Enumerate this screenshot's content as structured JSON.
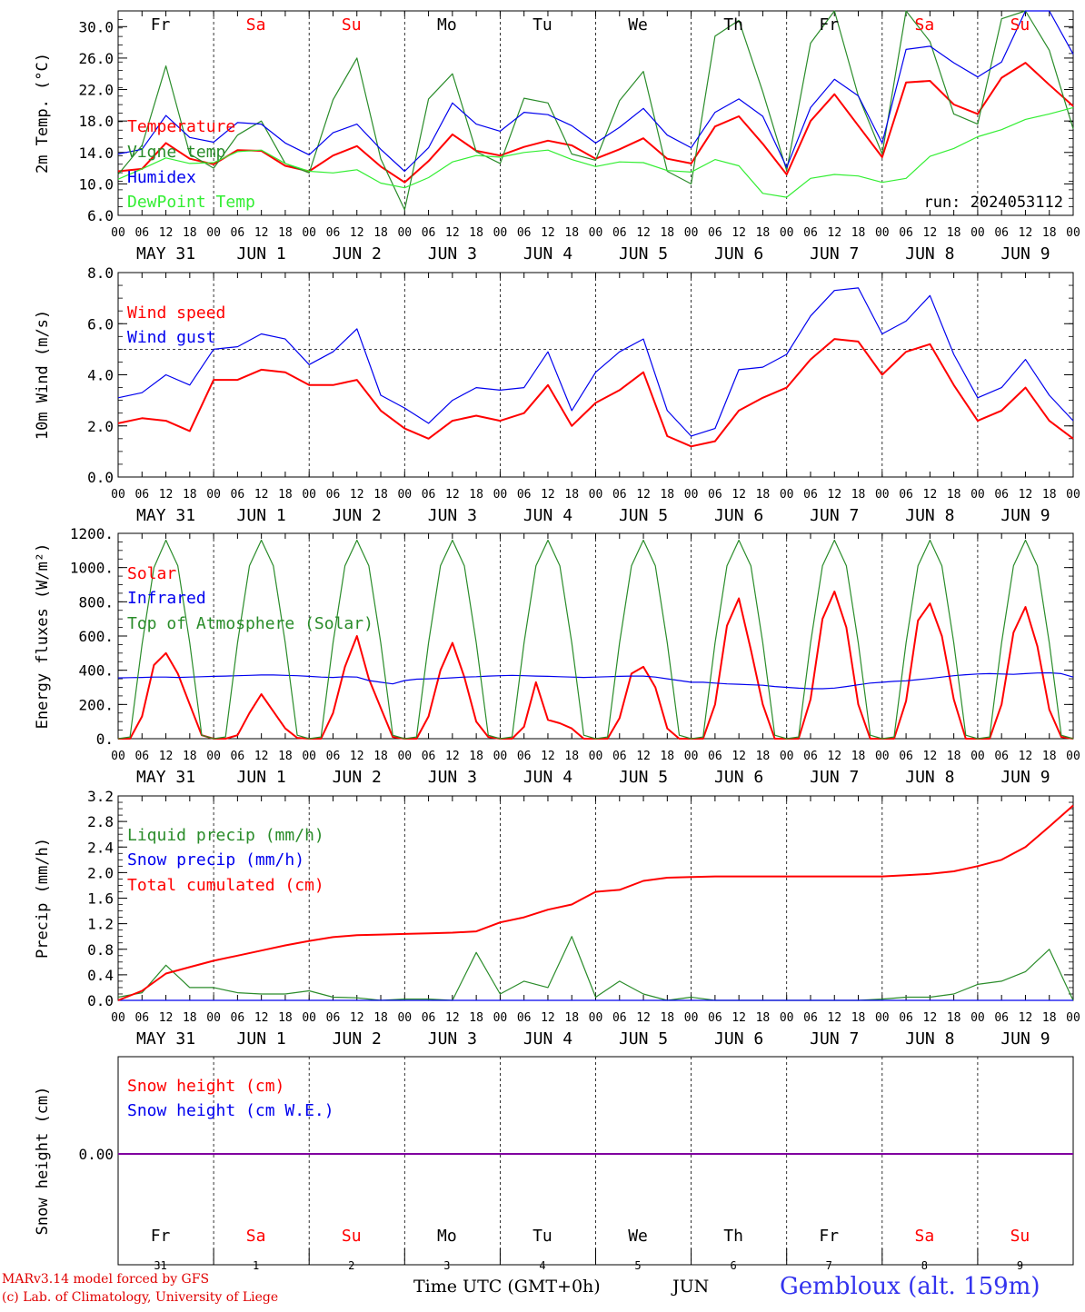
{
  "footer": {
    "credit_line1": "MARv3.14 model forced by GFS",
    "credit_line2": "(c) Lab. of Climatology, University of Liege",
    "time_label": "Time UTC (GMT+0h)",
    "month_label": "JUN",
    "station": "Gembloux (alt. 159m)"
  },
  "colors": {
    "red": "#ff0000",
    "green": "#2a8c2a",
    "blue": "#0000ee",
    "lightgreen": "#33ee33",
    "purple": "#8000a0",
    "weekend": "#ff0000",
    "weekday": "#000000"
  },
  "day_names": [
    "Fr",
    "Sa",
    "Su",
    "Mo",
    "Tu",
    "We",
    "Th",
    "Fr",
    "Sa",
    "Su"
  ],
  "weekend_flags": [
    false,
    true,
    true,
    false,
    false,
    false,
    false,
    false,
    true,
    true
  ],
  "date_labels": [
    "MAY 31",
    "JUN  1",
    "JUN  2",
    "JUN  3",
    "JUN  4",
    "JUN  5",
    "JUN  6",
    "JUN  7",
    "JUN  8",
    "JUN  9"
  ],
  "hour_labels": [
    "00",
    "06",
    "12",
    "18"
  ],
  "day_numbers": [
    "31",
    "1",
    "2",
    "3",
    "4",
    "5",
    "6",
    "7",
    "8",
    "9"
  ],
  "chart_data": [
    {
      "type": "line",
      "ylabel": "2m Temp. (°C)",
      "ylim": [
        6,
        32
      ],
      "yticks": [
        "6.0",
        "10.0",
        "14.0",
        "18.0",
        "22.0",
        "26.0",
        "30.0"
      ],
      "annotation": "run: 2024053112",
      "legend_placement": "left",
      "x_hours": [
        0,
        6,
        12,
        18,
        24,
        30,
        36,
        42,
        48,
        54,
        60,
        66,
        72,
        78,
        84,
        90,
        96,
        102,
        108,
        114,
        120,
        126,
        132,
        138,
        144,
        150,
        156,
        162,
        168,
        174,
        180,
        186,
        192,
        198,
        204,
        210,
        216,
        222,
        228,
        234,
        240
      ],
      "series": [
        {
          "name": "Temperature",
          "color": "red",
          "values": [
            11.6,
            11.9,
            15.2,
            13.2,
            12.5,
            14.3,
            14.2,
            12.3,
            11.6,
            13.6,
            14.8,
            12.2,
            10.2,
            12.9,
            16.3,
            14.2,
            13.6,
            14.7,
            15.5,
            14.9,
            13.2,
            14.4,
            15.8,
            13.2,
            12.6,
            17.3,
            18.6,
            15.1,
            11.2,
            18.0,
            21.4,
            17.4,
            13.4,
            22.9,
            23.1,
            20.1,
            18.9,
            23.5,
            25.4,
            22.6,
            19.9
          ]
        },
        {
          "name": "Vigne temp",
          "color": "green",
          "values": [
            11.2,
            14.9,
            25.0,
            13.8,
            12.0,
            16.2,
            18.0,
            12.6,
            11.4,
            20.7,
            26.0,
            13.2,
            6.7,
            20.8,
            24.0,
            14.1,
            12.6,
            20.9,
            20.3,
            13.8,
            13.0,
            20.6,
            24.3,
            11.6,
            10.0,
            28.8,
            30.8,
            21.7,
            11.7,
            27.9,
            32.0,
            21.2,
            13.8,
            32.0,
            28.1,
            18.9,
            17.6,
            31.0,
            32.0,
            27.0,
            17.0
          ]
        },
        {
          "name": "Humidex",
          "color": "blue",
          "values": [
            13.8,
            14.4,
            18.7,
            15.9,
            15.3,
            17.8,
            17.6,
            15.2,
            13.7,
            16.5,
            17.6,
            14.4,
            11.6,
            14.6,
            20.3,
            17.6,
            16.7,
            19.1,
            18.8,
            17.4,
            15.2,
            17.2,
            19.6,
            16.2,
            14.6,
            19.1,
            20.8,
            18.6,
            12.1,
            19.7,
            23.3,
            21.2,
            15.2,
            27.1,
            27.5,
            25.4,
            23.6,
            25.5,
            32.0,
            32.0,
            26.5
          ]
        },
        {
          "name": "DewPoint Temp",
          "color": "lightgreen",
          "values": [
            10.6,
            11.9,
            13.3,
            12.6,
            12.7,
            14.1,
            14.3,
            12.6,
            11.6,
            11.4,
            11.8,
            10.1,
            9.5,
            10.8,
            12.8,
            13.6,
            13.4,
            14.0,
            14.3,
            13.1,
            12.2,
            12.8,
            12.7,
            11.7,
            11.5,
            13.1,
            12.3,
            8.8,
            8.3,
            10.7,
            11.2,
            11.0,
            10.2,
            10.7,
            13.5,
            14.5,
            16.0,
            16.9,
            18.2,
            18.9,
            19.7
          ]
        }
      ]
    },
    {
      "type": "line",
      "ylabel": "10m Wind (m/s)",
      "ylim": [
        0,
        8
      ],
      "yticks": [
        "0.0",
        "2.0",
        "4.0",
        "6.0",
        "8.0"
      ],
      "reference_line": 5,
      "legend_placement": "left",
      "x_hours": [
        0,
        6,
        12,
        18,
        24,
        30,
        36,
        42,
        48,
        54,
        60,
        66,
        72,
        78,
        84,
        90,
        96,
        102,
        108,
        114,
        120,
        126,
        132,
        138,
        144,
        150,
        156,
        162,
        168,
        174,
        180,
        186,
        192,
        198,
        204,
        210,
        216,
        222,
        228,
        234,
        240
      ],
      "series": [
        {
          "name": "Wind speed",
          "color": "red",
          "values": [
            2.1,
            2.3,
            2.2,
            1.8,
            3.8,
            3.8,
            4.2,
            4.1,
            3.6,
            3.6,
            3.8,
            2.6,
            1.9,
            1.5,
            2.2,
            2.4,
            2.2,
            2.5,
            3.6,
            2.0,
            2.9,
            3.4,
            4.1,
            1.6,
            1.2,
            1.4,
            2.6,
            3.1,
            3.5,
            4.6,
            5.4,
            5.3,
            4.0,
            4.9,
            5.2,
            3.6,
            2.2,
            2.6,
            3.5,
            2.2,
            1.5
          ]
        },
        {
          "name": "Wind gust",
          "color": "blue",
          "values": [
            3.1,
            3.3,
            4.0,
            3.6,
            5.0,
            5.1,
            5.6,
            5.4,
            4.4,
            4.9,
            5.8,
            3.2,
            2.7,
            2.1,
            3.0,
            3.5,
            3.4,
            3.5,
            4.9,
            2.6,
            4.1,
            4.9,
            5.4,
            2.6,
            1.6,
            1.9,
            4.2,
            4.3,
            4.8,
            6.3,
            7.3,
            7.4,
            5.6,
            6.1,
            7.1,
            4.8,
            3.1,
            3.5,
            4.6,
            3.2,
            2.2
          ]
        }
      ]
    },
    {
      "type": "line",
      "ylabel": "Energy fluxes (W/m²)",
      "ylim": [
        0,
        1200
      ],
      "yticks": [
        "0.",
        "200.",
        "400.",
        "600.",
        "800.",
        "1000.",
        "1200."
      ],
      "legend_placement": "left",
      "x_hours": [
        0,
        3,
        6,
        9,
        12,
        15,
        18,
        21,
        24,
        27,
        30,
        33,
        36,
        39,
        42,
        45,
        48,
        51,
        54,
        57,
        60,
        63,
        66,
        69,
        72,
        75,
        78,
        81,
        84,
        87,
        90,
        93,
        96,
        99,
        102,
        105,
        108,
        111,
        114,
        117,
        120,
        123,
        126,
        129,
        132,
        135,
        138,
        141,
        144,
        147,
        150,
        153,
        156,
        159,
        162,
        165,
        168,
        171,
        174,
        177,
        180,
        183,
        186,
        189,
        192,
        195,
        198,
        201,
        204,
        207,
        210,
        213,
        216,
        219,
        222,
        225,
        228,
        231,
        234,
        237,
        240
      ],
      "series": [
        {
          "name": "Solar",
          "color": "red",
          "values": [
            0,
            0,
            130,
            430,
            500,
            380,
            200,
            20,
            0,
            0,
            20,
            150,
            260,
            160,
            60,
            5,
            0,
            0,
            150,
            420,
            600,
            350,
            180,
            10,
            0,
            0,
            130,
            400,
            560,
            360,
            100,
            10,
            0,
            0,
            70,
            330,
            110,
            90,
            60,
            0,
            0,
            0,
            120,
            380,
            420,
            300,
            60,
            0,
            0,
            0,
            200,
            660,
            820,
            520,
            200,
            0,
            0,
            0,
            230,
            700,
            860,
            650,
            200,
            0,
            0,
            0,
            220,
            690,
            790,
            600,
            230,
            0,
            0,
            0,
            200,
            620,
            770,
            540,
            170,
            10,
            0
          ]
        },
        {
          "name": "Infrared",
          "color": "blue",
          "values": [
            355,
            357,
            358,
            360,
            360,
            358,
            360,
            362,
            364,
            366,
            368,
            370,
            372,
            372,
            370,
            368,
            364,
            360,
            358,
            362,
            360,
            340,
            330,
            320,
            340,
            348,
            350,
            352,
            356,
            360,
            362,
            366,
            368,
            370,
            368,
            366,
            364,
            362,
            360,
            358,
            360,
            362,
            364,
            366,
            366,
            360,
            350,
            340,
            330,
            330,
            325,
            320,
            318,
            315,
            312,
            305,
            300,
            295,
            292,
            292,
            296,
            305,
            315,
            325,
            330,
            335,
            338,
            345,
            352,
            360,
            368,
            374,
            378,
            380,
            378,
            376,
            380,
            384,
            385,
            380,
            360
          ]
        },
        {
          "name": "Top of Atmosphere (Solar)",
          "color": "green",
          "values": [
            0,
            10,
            550,
            1000,
            1160,
            1010,
            560,
            20,
            0,
            10,
            560,
            1010,
            1160,
            1010,
            560,
            20,
            0,
            10,
            560,
            1010,
            1160,
            1010,
            560,
            20,
            0,
            10,
            560,
            1010,
            1160,
            1010,
            560,
            20,
            0,
            10,
            560,
            1010,
            1160,
            1010,
            560,
            20,
            0,
            10,
            560,
            1010,
            1160,
            1010,
            560,
            20,
            0,
            10,
            560,
            1010,
            1160,
            1010,
            560,
            20,
            0,
            10,
            560,
            1010,
            1160,
            1010,
            560,
            20,
            0,
            10,
            560,
            1010,
            1160,
            1010,
            560,
            20,
            0,
            10,
            560,
            1010,
            1160,
            1010,
            560,
            20,
            0
          ]
        }
      ]
    },
    {
      "type": "line",
      "ylabel": "Precip (mm/h)",
      "ylim": [
        0,
        3.2
      ],
      "yticks": [
        "0.0",
        "0.4",
        "0.8",
        "1.2",
        "1.6",
        "2.0",
        "2.4",
        "2.8",
        "3.2"
      ],
      "legend_placement": "left",
      "x_hours": [
        0,
        6,
        12,
        18,
        24,
        30,
        36,
        42,
        48,
        54,
        60,
        66,
        72,
        78,
        84,
        90,
        96,
        102,
        108,
        114,
        120,
        126,
        132,
        138,
        144,
        150,
        156,
        162,
        168,
        174,
        180,
        186,
        192,
        198,
        204,
        210,
        216,
        222,
        228,
        234,
        240
      ],
      "series": [
        {
          "name": "Liquid precip (mm/h)",
          "color": "green",
          "values": [
            0.05,
            0.12,
            0.55,
            0.2,
            0.2,
            0.12,
            0.1,
            0.1,
            0.15,
            0.05,
            0.04,
            0.0,
            0.02,
            0.02,
            0.0,
            0.75,
            0.1,
            0.3,
            0.2,
            1.0,
            0.05,
            0.3,
            0.1,
            0.0,
            0.05,
            0.0,
            0.0,
            0.0,
            0.0,
            0.0,
            0.0,
            0.0,
            0.02,
            0.05,
            0.05,
            0.1,
            0.25,
            0.3,
            0.45,
            0.8,
            0.0
          ]
        },
        {
          "name": "Snow precip (mm/h)",
          "color": "blue",
          "values": [
            0,
            0,
            0,
            0,
            0,
            0,
            0,
            0,
            0,
            0,
            0,
            0,
            0,
            0,
            0,
            0,
            0,
            0,
            0,
            0,
            0,
            0,
            0,
            0,
            0,
            0,
            0,
            0,
            0,
            0,
            0,
            0,
            0,
            0,
            0,
            0,
            0,
            0,
            0,
            0,
            0
          ]
        },
        {
          "name": "Total cumulated (cm)",
          "color": "red",
          "values": [
            0.0,
            0.15,
            0.42,
            0.52,
            0.62,
            0.7,
            0.78,
            0.86,
            0.93,
            0.99,
            1.02,
            1.03,
            1.04,
            1.05,
            1.06,
            1.08,
            1.22,
            1.3,
            1.42,
            1.5,
            1.7,
            1.73,
            1.87,
            1.92,
            1.93,
            1.94,
            1.94,
            1.94,
            1.94,
            1.94,
            1.94,
            1.94,
            1.94,
            1.96,
            1.98,
            2.02,
            2.1,
            2.2,
            2.4,
            2.72,
            3.05
          ]
        }
      ]
    },
    {
      "type": "line",
      "ylabel": "Snow height (cm)",
      "yticks": [
        "0.00"
      ],
      "legend_placement": "left",
      "x_hours": [
        0,
        240
      ],
      "series": [
        {
          "name": "Snow height (cm)",
          "color": "red",
          "values": [
            0,
            0
          ]
        },
        {
          "name": "Snow height (cm W.E.)",
          "color": "blue",
          "values": [
            0,
            0
          ]
        }
      ]
    }
  ]
}
